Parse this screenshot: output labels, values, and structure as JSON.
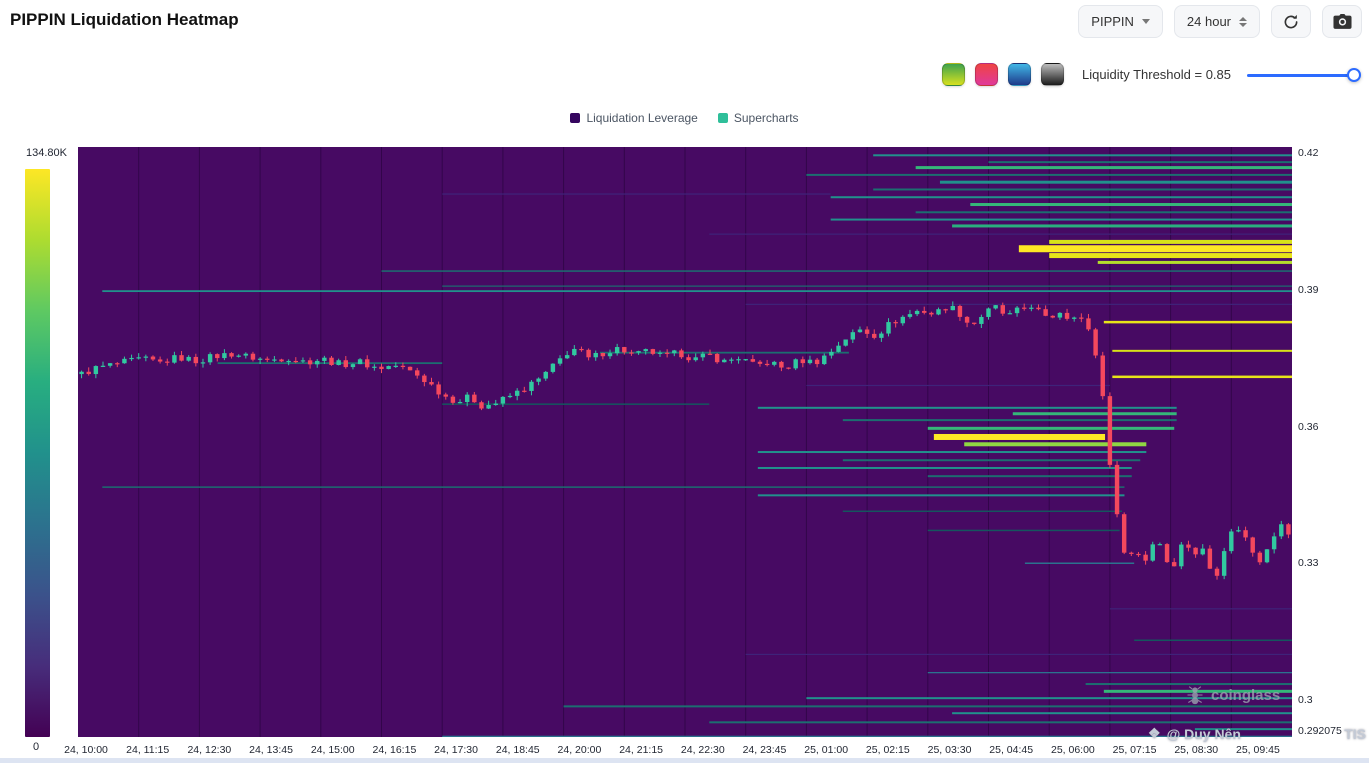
{
  "header": {
    "title": "PIPPIN Liquidation Heatmap",
    "symbol": "PIPPIN",
    "timeframe": "24 hour"
  },
  "toolbar": {
    "colormaps": [
      {
        "name": "green-yellow",
        "colors": [
          "#3fa34d",
          "#d7e11f"
        ]
      },
      {
        "name": "red-pink",
        "colors": [
          "#ef4444",
          "#e0399a"
        ]
      },
      {
        "name": "blue",
        "colors": [
          "#41b6e6",
          "#1e3a8a"
        ]
      },
      {
        "name": "dark",
        "colors": [
          "#bdbdbd",
          "#1a1a1a"
        ]
      }
    ],
    "threshold_label": "Liquidity Threshold = 0.85",
    "threshold_value": 0.85
  },
  "legend": {
    "items": [
      {
        "label": "Liquidation Leverage",
        "color": "#35065f"
      },
      {
        "label": "Supercharts",
        "color": "#2fbf9a"
      }
    ]
  },
  "watermark": {
    "brand": "coinglass",
    "user": "@ Duy Nên",
    "user_suffix": "TIS"
  },
  "chart_data": {
    "type": "heatmap",
    "overlay": "candlestick",
    "title": "PIPPIN Liquidation Heatmap",
    "background": "#470a63",
    "grid_color": "rgba(25,0,45,0.45)",
    "y_range": [
      0.29188,
      0.42132
    ],
    "y_ticks": [
      {
        "label": "0.42",
        "price": 0.42
      },
      {
        "label": "0.39",
        "price": 0.39
      },
      {
        "label": "0.36",
        "price": 0.36
      },
      {
        "label": "0.33",
        "price": 0.33
      },
      {
        "label": "0.3",
        "price": 0.3
      },
      {
        "label": "0.292075",
        "price": 0.2932
      }
    ],
    "x_ticks": [
      "24, 10:00",
      "24, 11:15",
      "24, 12:30",
      "24, 13:45",
      "24, 15:00",
      "24, 16:15",
      "24, 17:30",
      "24, 18:45",
      "24, 20:00",
      "24, 21:15",
      "24, 22:30",
      "24, 23:45",
      "25, 01:00",
      "25, 02:15",
      "25, 03:30",
      "25, 04:45",
      "25, 06:00",
      "25, 07:15",
      "25, 08:30",
      "25, 09:45"
    ],
    "colorbar": {
      "max_label": "134.80K",
      "min_label": "0",
      "colors": [
        "#fde725",
        "#addc30",
        "#5ec962",
        "#28ae80",
        "#21918c",
        "#2c728e",
        "#3b528b",
        "#472d7b",
        "#440154"
      ]
    },
    "liquidation_lines": [
      {
        "p": 0.4195,
        "x0": 0.655,
        "x1": 1,
        "c": "#21918c",
        "w": 2
      },
      {
        "p": 0.418,
        "x0": 0.75,
        "x1": 1,
        "c": "#1c6e70",
        "w": 2
      },
      {
        "p": 0.4168,
        "x0": 0.69,
        "x1": 1,
        "c": "#35b779",
        "w": 3
      },
      {
        "p": 0.4152,
        "x0": 0.6,
        "x1": 1,
        "c": "#1c6e70",
        "w": 2
      },
      {
        "p": 0.4136,
        "x0": 0.71,
        "x1": 1,
        "c": "#21918c",
        "w": 3
      },
      {
        "p": 0.412,
        "x0": 0.655,
        "x1": 1,
        "c": "#1c6e70",
        "w": 2
      },
      {
        "p": 0.4103,
        "x0": 0.62,
        "x1": 1,
        "c": "#21918c",
        "w": 2
      },
      {
        "p": 0.4087,
        "x0": 0.735,
        "x1": 1,
        "c": "#35b779",
        "w": 3
      },
      {
        "p": 0.407,
        "x0": 0.69,
        "x1": 1,
        "c": "#1c6e70",
        "w": 2
      },
      {
        "p": 0.4054,
        "x0": 0.62,
        "x1": 1,
        "c": "#21918c",
        "w": 2
      },
      {
        "p": 0.404,
        "x0": 0.72,
        "x1": 1,
        "c": "#2ab07f",
        "w": 3
      },
      {
        "p": 0.4005,
        "x0": 0.8,
        "x1": 1,
        "c": "#d8e219",
        "w": 4
      },
      {
        "p": 0.399,
        "x0": 0.775,
        "x1": 1,
        "c": "#fde725",
        "w": 7
      },
      {
        "p": 0.3975,
        "x0": 0.8,
        "x1": 1,
        "c": "#e8e419",
        "w": 5
      },
      {
        "p": 0.396,
        "x0": 0.84,
        "x1": 1,
        "c": "#b5dd2b",
        "w": 3
      },
      {
        "p": 0.3941,
        "x0": 0.25,
        "x1": 1,
        "c": "#1c6e70",
        "w": 1.5
      },
      {
        "p": 0.3908,
        "x0": 0.3,
        "x1": 1,
        "c": "#1c6e70",
        "w": 1.2
      },
      {
        "p": 0.3897,
        "x0": 0.02,
        "x1": 1,
        "c": "#21918c",
        "w": 1.8
      },
      {
        "p": 0.3829,
        "x0": 0.845,
        "x1": 1,
        "c": "#e8e419",
        "w": 2.5
      },
      {
        "p": 0.3766,
        "x0": 0.852,
        "x1": 1,
        "c": "#d8e219",
        "w": 2
      },
      {
        "p": 0.3709,
        "x0": 0.852,
        "x1": 1,
        "c": "#e8e419",
        "w": 2.5
      },
      {
        "p": 0.3739,
        "x0": 0.115,
        "x1": 0.3,
        "c": "#1c6e70",
        "w": 1.8
      },
      {
        "p": 0.3762,
        "x0": 0.43,
        "x1": 0.635,
        "c": "#1c6e70",
        "w": 1.8
      },
      {
        "p": 0.3649,
        "x0": 0.3,
        "x1": 0.52,
        "c": "#15565e",
        "w": 1.5
      },
      {
        "p": 0.3641,
        "x0": 0.56,
        "x1": 0.905,
        "c": "#21918c",
        "w": 2
      },
      {
        "p": 0.3628,
        "x0": 0.77,
        "x1": 0.905,
        "c": "#35b779",
        "w": 3
      },
      {
        "p": 0.3614,
        "x0": 0.63,
        "x1": 0.905,
        "c": "#1c6e70",
        "w": 2
      },
      {
        "p": 0.3596,
        "x0": 0.7,
        "x1": 0.903,
        "c": "#35b779",
        "w": 3
      },
      {
        "p": 0.3577,
        "x0": 0.705,
        "x1": 0.846,
        "c": "#fde725",
        "w": 6
      },
      {
        "p": 0.3561,
        "x0": 0.73,
        "x1": 0.88,
        "c": "#90d743",
        "w": 4
      },
      {
        "p": 0.3544,
        "x0": 0.56,
        "x1": 0.88,
        "c": "#21918c",
        "w": 2
      },
      {
        "p": 0.3526,
        "x0": 0.63,
        "x1": 0.875,
        "c": "#1c6e70",
        "w": 2
      },
      {
        "p": 0.3509,
        "x0": 0.56,
        "x1": 0.868,
        "c": "#21918c",
        "w": 2
      },
      {
        "p": 0.3491,
        "x0": 0.7,
        "x1": 0.868,
        "c": "#1c6e70",
        "w": 2
      },
      {
        "p": 0.3467,
        "x0": 0.02,
        "x1": 0.862,
        "c": "#1c6e70",
        "w": 1.5
      },
      {
        "p": 0.3449,
        "x0": 0.56,
        "x1": 0.862,
        "c": "#21918c",
        "w": 2
      },
      {
        "p": 0.3414,
        "x0": 0.63,
        "x1": 0.86,
        "c": "#15565e",
        "w": 1.5
      },
      {
        "p": 0.3372,
        "x0": 0.7,
        "x1": 0.858,
        "c": "#15565e",
        "w": 1.5
      },
      {
        "p": 0.3131,
        "x0": 0.87,
        "x1": 1,
        "c": "#15565e",
        "w": 1.5
      },
      {
        "p": 0.3035,
        "x0": 0.83,
        "x1": 1,
        "c": "#1c6e70",
        "w": 2
      },
      {
        "p": 0.3019,
        "x0": 0.845,
        "x1": 1,
        "c": "#35b779",
        "w": 3
      },
      {
        "p": 0.3004,
        "x0": 0.6,
        "x1": 1,
        "c": "#21918c",
        "w": 2
      },
      {
        "p": 0.2986,
        "x0": 0.4,
        "x1": 1,
        "c": "#1c6e70",
        "w": 2
      },
      {
        "p": 0.2971,
        "x0": 0.72,
        "x1": 1,
        "c": "#21918c",
        "w": 2
      },
      {
        "p": 0.2951,
        "x0": 0.52,
        "x1": 1,
        "c": "#1c6e70",
        "w": 2
      },
      {
        "p": 0.2936,
        "x0": 0.92,
        "x1": 1,
        "c": "#21918c",
        "w": 2
      },
      {
        "p": 0.411,
        "x0": 0.3,
        "x1": 0.62,
        "c": "#3f2379",
        "w": 1.2
      },
      {
        "p": 0.4022,
        "x0": 0.52,
        "x1": 1,
        "c": "#3f2379",
        "w": 1.2
      },
      {
        "p": 0.3868,
        "x0": 0.55,
        "x1": 1,
        "c": "#3f2379",
        "w": 1.2
      },
      {
        "p": 0.369,
        "x0": 0.6,
        "x1": 0.85,
        "c": "#3f2379",
        "w": 1.2
      },
      {
        "p": 0.33,
        "x0": 0.78,
        "x1": 0.87,
        "c": "#2c728e",
        "w": 1.5
      },
      {
        "p": 0.32,
        "x0": 0.85,
        "x1": 1,
        "c": "#3f2379",
        "w": 1.2
      },
      {
        "p": 0.31,
        "x0": 0.55,
        "x1": 1,
        "c": "#3f2379",
        "w": 1.2
      },
      {
        "p": 0.306,
        "x0": 0.7,
        "x1": 1,
        "c": "#2c728e",
        "w": 1.3
      },
      {
        "p": 0.292,
        "x0": 0.3,
        "x1": 1,
        "c": "#2c728e",
        "w": 1.5
      }
    ],
    "price_path": [
      [
        0.0,
        0.3715
      ],
      [
        0.012,
        0.3728
      ],
      [
        0.03,
        0.3738
      ],
      [
        0.05,
        0.3748
      ],
      [
        0.065,
        0.374
      ],
      [
        0.08,
        0.3752
      ],
      [
        0.095,
        0.3744
      ],
      [
        0.11,
        0.3754
      ],
      [
        0.125,
        0.376
      ],
      [
        0.14,
        0.3752
      ],
      [
        0.155,
        0.3745
      ],
      [
        0.17,
        0.3752
      ],
      [
        0.185,
        0.3742
      ],
      [
        0.2,
        0.3748
      ],
      [
        0.215,
        0.3736
      ],
      [
        0.23,
        0.3742
      ],
      [
        0.245,
        0.3728
      ],
      [
        0.26,
        0.3734
      ],
      [
        0.275,
        0.3718
      ],
      [
        0.288,
        0.3695
      ],
      [
        0.3,
        0.3668
      ],
      [
        0.312,
        0.3655
      ],
      [
        0.322,
        0.3665
      ],
      [
        0.332,
        0.3645
      ],
      [
        0.344,
        0.3652
      ],
      [
        0.356,
        0.3668
      ],
      [
        0.368,
        0.3685
      ],
      [
        0.38,
        0.3705
      ],
      [
        0.392,
        0.3735
      ],
      [
        0.402,
        0.3762
      ],
      [
        0.41,
        0.3772
      ],
      [
        0.42,
        0.3748
      ],
      [
        0.432,
        0.3762
      ],
      [
        0.445,
        0.3772
      ],
      [
        0.458,
        0.3756
      ],
      [
        0.47,
        0.3766
      ],
      [
        0.482,
        0.3752
      ],
      [
        0.495,
        0.3762
      ],
      [
        0.508,
        0.3747
      ],
      [
        0.52,
        0.3757
      ],
      [
        0.532,
        0.3742
      ],
      [
        0.545,
        0.3752
      ],
      [
        0.558,
        0.3732
      ],
      [
        0.57,
        0.3742
      ],
      [
        0.582,
        0.3726
      ],
      [
        0.595,
        0.3746
      ],
      [
        0.608,
        0.3741
      ],
      [
        0.62,
        0.3762
      ],
      [
        0.632,
        0.3792
      ],
      [
        0.645,
        0.3812
      ],
      [
        0.658,
        0.38
      ],
      [
        0.67,
        0.3826
      ],
      [
        0.682,
        0.3842
      ],
      [
        0.695,
        0.3856
      ],
      [
        0.706,
        0.3846
      ],
      [
        0.718,
        0.3866
      ],
      [
        0.727,
        0.385
      ],
      [
        0.737,
        0.382
      ],
      [
        0.747,
        0.3846
      ],
      [
        0.757,
        0.3862
      ],
      [
        0.767,
        0.384
      ],
      [
        0.777,
        0.3856
      ],
      [
        0.787,
        0.3866
      ],
      [
        0.794,
        0.385
      ],
      [
        0.801,
        0.383
      ],
      [
        0.809,
        0.3856
      ],
      [
        0.817,
        0.384
      ],
      [
        0.825,
        0.385
      ],
      [
        0.833,
        0.3818
      ],
      [
        0.839,
        0.3775
      ],
      [
        0.845,
        0.3695
      ],
      [
        0.851,
        0.3545
      ],
      [
        0.857,
        0.3415
      ],
      [
        0.861,
        0.336
      ],
      [
        0.867,
        0.33
      ],
      [
        0.873,
        0.3342
      ],
      [
        0.879,
        0.3292
      ],
      [
        0.885,
        0.333
      ],
      [
        0.891,
        0.3362
      ],
      [
        0.897,
        0.332
      ],
      [
        0.903,
        0.3282
      ],
      [
        0.909,
        0.333
      ],
      [
        0.915,
        0.3352
      ],
      [
        0.921,
        0.3312
      ],
      [
        0.927,
        0.3342
      ],
      [
        0.933,
        0.3302
      ],
      [
        0.939,
        0.3262
      ],
      [
        0.945,
        0.3322
      ],
      [
        0.951,
        0.336
      ],
      [
        0.957,
        0.3382
      ],
      [
        0.963,
        0.3362
      ],
      [
        0.969,
        0.3332
      ],
      [
        0.975,
        0.3302
      ],
      [
        0.981,
        0.333
      ],
      [
        0.987,
        0.3362
      ],
      [
        0.994,
        0.3382
      ],
      [
        1.0,
        0.3365
      ]
    ],
    "candles": {
      "count": 170,
      "up_color": "#31c9a0",
      "down_color": "#f4485d",
      "wiggle": 0.0016,
      "wick": 0.001
    }
  }
}
